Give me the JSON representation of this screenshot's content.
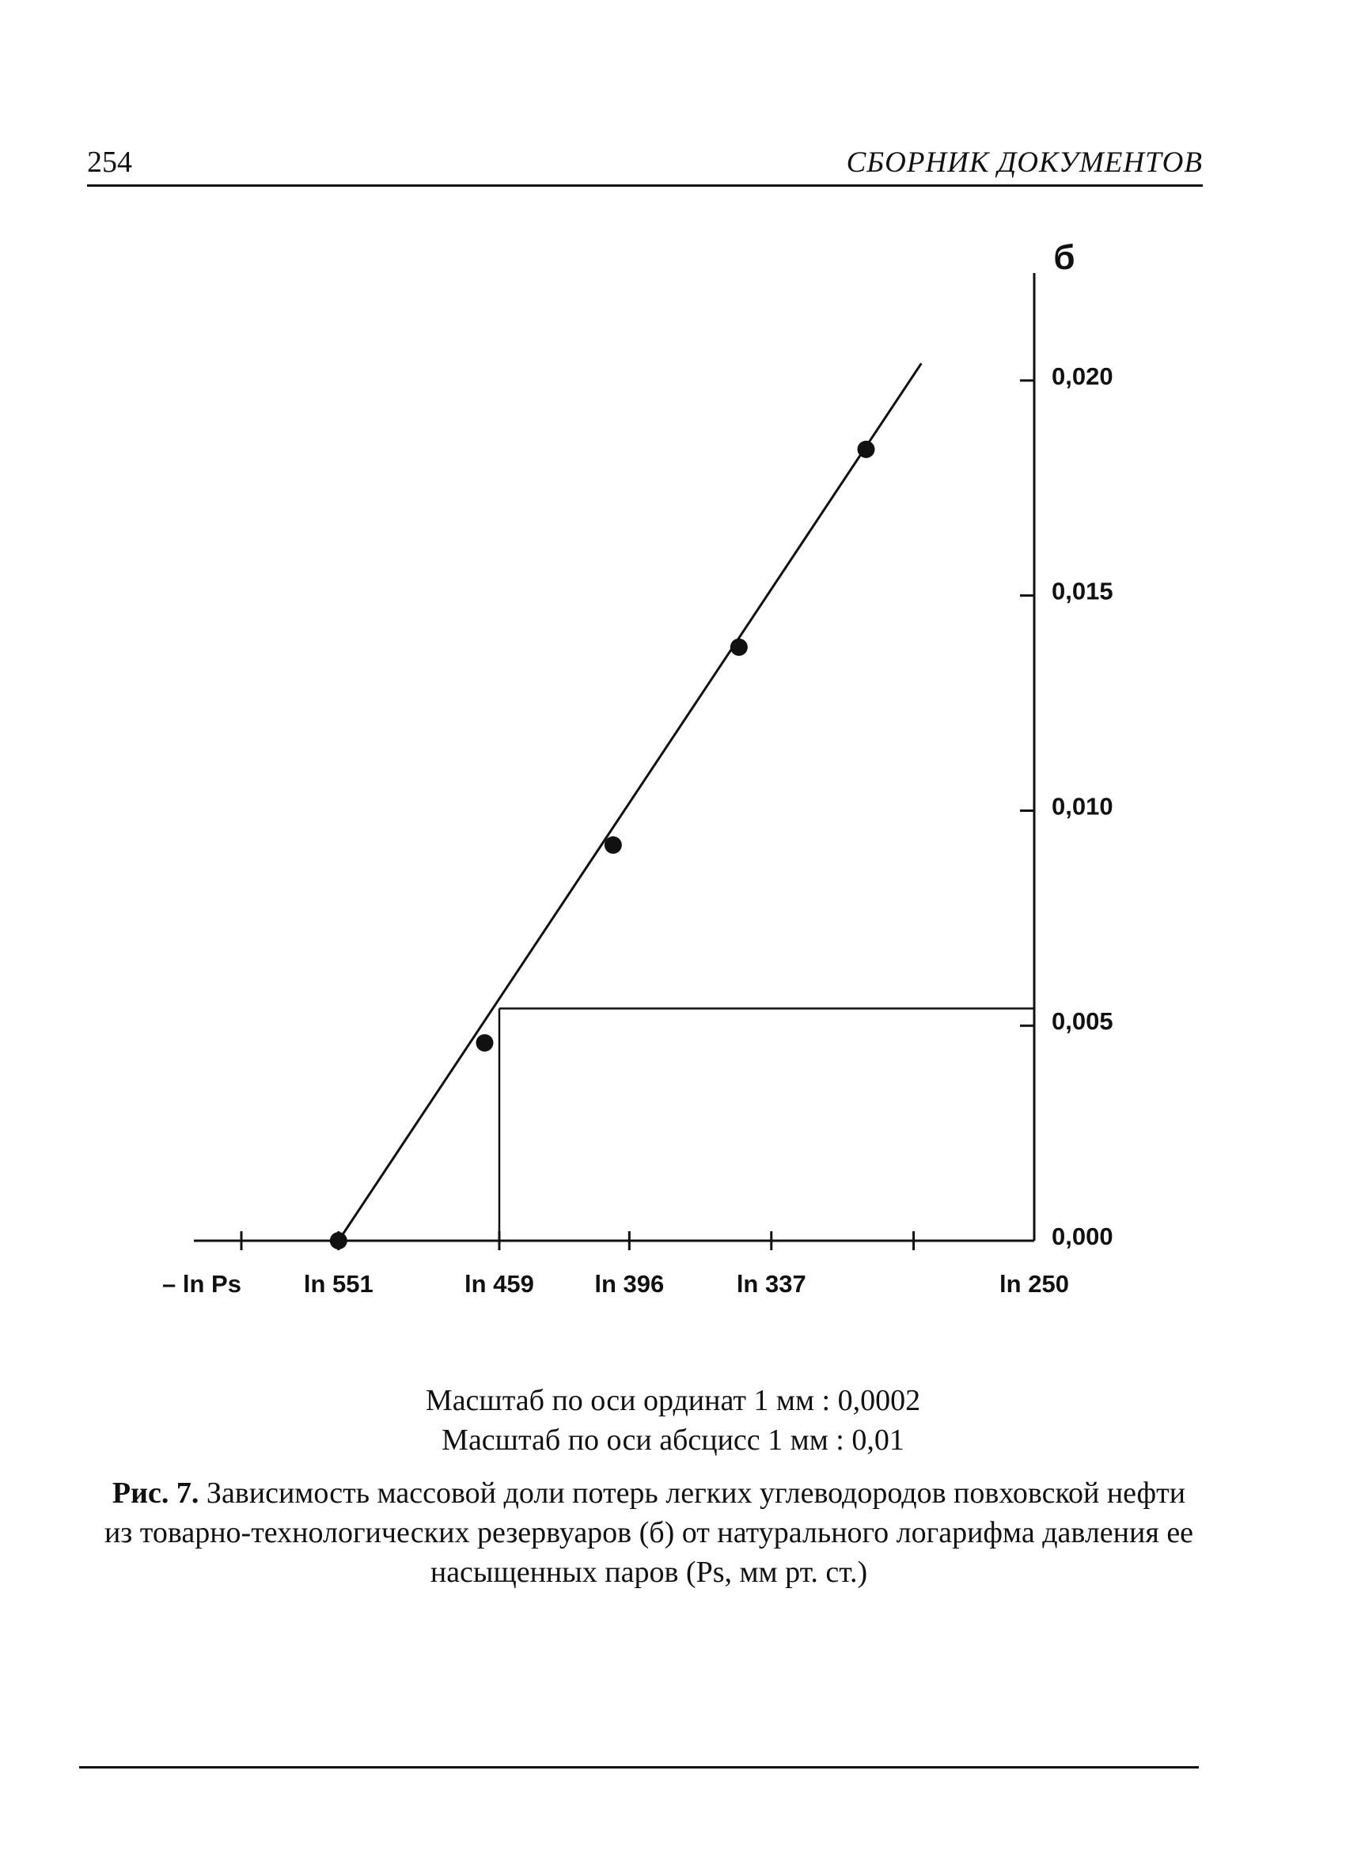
{
  "header": {
    "page_number": "254",
    "running_head": "СБОРНИК ДОКУМЕНТОВ"
  },
  "chart_data": {
    "type": "line",
    "title": "",
    "ylabel": "б",
    "xlabel": "– ln Ps",
    "x_ticks": [
      {
        "label": "ln 551",
        "value": 6.3117
      },
      {
        "label": "ln 459",
        "value": 6.1291
      },
      {
        "label": "ln 396",
        "value": 5.9814
      },
      {
        "label": "ln 337",
        "value": 5.8201
      },
      {
        "label": "",
        "value": 5.6585
      },
      {
        "label": "ln 250",
        "value": 5.5215
      }
    ],
    "y_ticks": [
      {
        "label": "0,000",
        "value": 0.0
      },
      {
        "label": "0,005",
        "value": 0.005
      },
      {
        "label": "0,010",
        "value": 0.01
      },
      {
        "label": "0,015",
        "value": 0.015
      },
      {
        "label": "0,020",
        "value": 0.02
      }
    ],
    "xlim": [
      6.476,
      5.5215
    ],
    "ylim": [
      0.0,
      0.0225
    ],
    "series": [
      {
        "points": [
          {
            "x": 6.3117,
            "y": 0.0
          },
          {
            "x": 6.1457,
            "y": 0.0046
          },
          {
            "x": 5.9998,
            "y": 0.0092
          },
          {
            "x": 5.8569,
            "y": 0.0138
          },
          {
            "x": 5.7125,
            "y": 0.0184
          }
        ],
        "line": [
          {
            "x": 6.3117,
            "y": 0.0
          },
          {
            "x": 5.6497,
            "y": 0.0204
          }
        ]
      }
    ],
    "guide": {
      "x": 6.1291,
      "y": 0.0054
    },
    "grid": false,
    "legend": "none"
  },
  "scale_notes": {
    "ordinate": "Масштаб по оси ординат 1 мм : 0,0002",
    "abscissa": "Масштаб по оси абсцисс 1 мм : 0,01"
  },
  "caption": {
    "label": "Рис. 7.",
    "text": "Зависимость массовой доли потерь легких углеводородов повховской нефти из товарно-технологических резервуаров (б) от натурального логарифма давления ее насыщенных паров (Ps, мм рт. ст.)"
  }
}
